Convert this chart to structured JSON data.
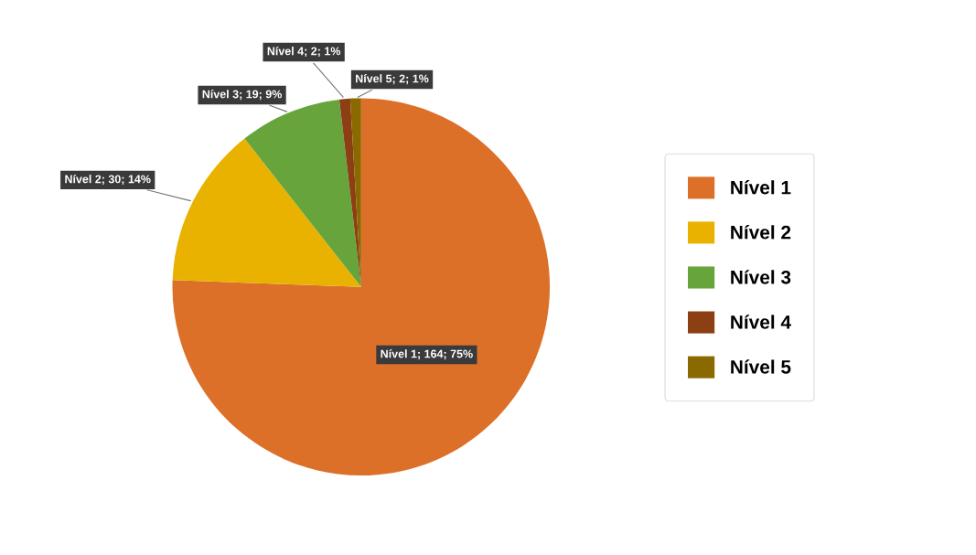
{
  "chart_data": {
    "type": "pie",
    "categories": [
      "Nível 1",
      "Nível 2",
      "Nível 3",
      "Nível 4",
      "Nível 5"
    ],
    "values": [
      164,
      30,
      19,
      2,
      2
    ],
    "colors": [
      "#dd7029",
      "#e9b200",
      "#67a43c",
      "#8b3f12",
      "#8a6a00"
    ],
    "value_labels": [
      "Nível 1; 164; 75%",
      "Nível 2; 30; 14%",
      "Nível 3; 19; 9%",
      "Nível 4; 2; 1%",
      "Nível 5; 2; 1%"
    ],
    "legend": "right"
  }
}
